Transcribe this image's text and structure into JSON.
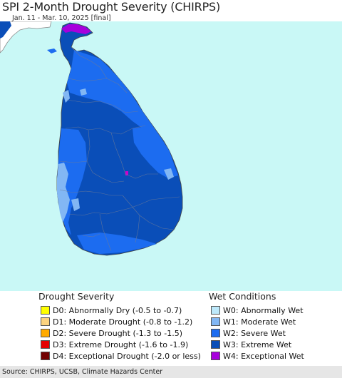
{
  "title": "SPI 2-Month Drought Severity (CHIRPS)",
  "subtitle": "Jan. 11 - Mar. 10, 2025 [final]",
  "legend_drought": {
    "title": "Drought Severity",
    "items": [
      {
        "label": "D0: Abnormally Dry (-0.5 to -0.7)",
        "color": "#ffff00"
      },
      {
        "label": "D1: Moderate Drought (-0.8 to -1.2)",
        "color": "#fcd37f"
      },
      {
        "label": "D2: Severe Drought (-1.3 to -1.5)",
        "color": "#ffaa00"
      },
      {
        "label": "D3: Extreme Drought (-1.6 to -1.9)",
        "color": "#e60000"
      },
      {
        "label": "D4: Exceptional Drought (-2.0 or less)",
        "color": "#730000"
      }
    ]
  },
  "legend_wet": {
    "title": "Wet Conditions",
    "items": [
      {
        "label": "W0: Abnormally Wet",
        "color": "#bde9fb"
      },
      {
        "label": "W1: Moderate Wet",
        "color": "#82b7f4"
      },
      {
        "label": "W2: Severe Wet",
        "color": "#1c6cf0"
      },
      {
        "label": "W3: Extreme Wet",
        "color": "#0a4eb8"
      },
      {
        "label": "W4: Exceptional Wet",
        "color": "#a700dc"
      }
    ]
  },
  "footer": "Source: CHIRPS, UCSB, Climate Hazards Center",
  "colors": {
    "ocean": "#c9f8f6",
    "neighbor_land": "#ffffff",
    "borders": "#6b7a99"
  }
}
